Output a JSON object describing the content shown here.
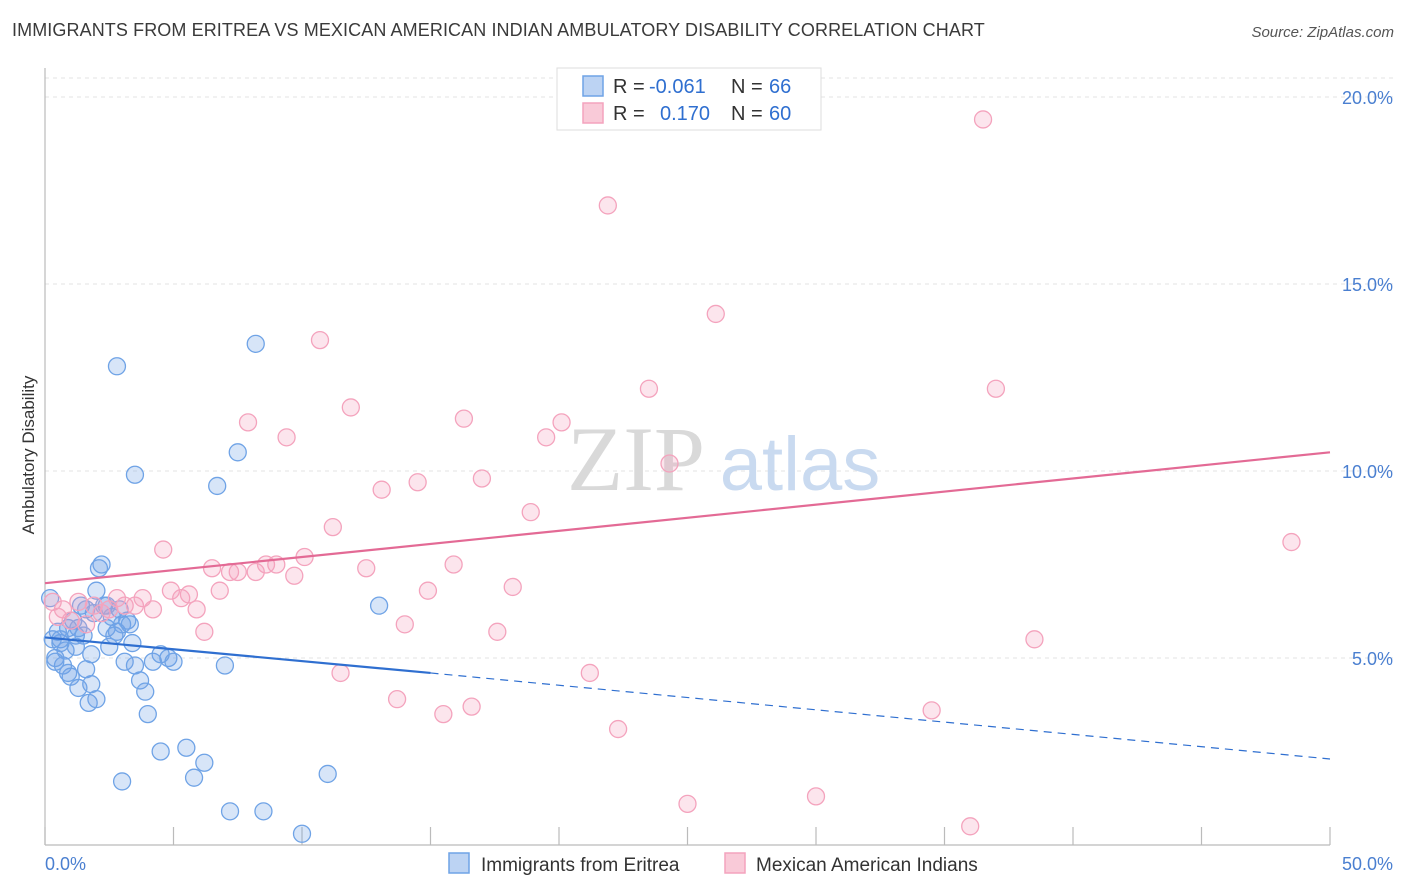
{
  "title": "IMMIGRANTS FROM ERITREA VS MEXICAN AMERICAN INDIAN AMBULATORY DISABILITY CORRELATION CHART",
  "source": "Source: ZipAtlas.com",
  "watermark": {
    "zip": "ZIP",
    "atlas": "atlas"
  },
  "chart_data": {
    "type": "scatter",
    "xlabel": "",
    "ylabel": "Ambulatory Disability",
    "xlim": [
      0,
      50
    ],
    "ylim": [
      0,
      20.5
    ],
    "x_tick_labels": {
      "min": "0.0%",
      "max": "50.0%"
    },
    "y_ticks": [
      {
        "value": 5,
        "label": "5.0%"
      },
      {
        "value": 10,
        "label": "10.0%"
      },
      {
        "value": 15,
        "label": "15.0%"
      },
      {
        "value": 20,
        "label": "20.0%"
      }
    ],
    "grid": true,
    "legend_position": "top-center",
    "series": [
      {
        "name": "Immigrants from Eritrea",
        "color": "#6fa3e6",
        "line_color": "#2f6fd0",
        "R": "-0.061",
        "N": "66",
        "trend": {
          "x0": 0,
          "y0": 5.55,
          "x1": 15,
          "y1": 4.6,
          "dash_x1": 50,
          "dash_y1": 2.3
        },
        "points": [
          [
            0.2,
            6.6
          ],
          [
            0.3,
            5.5
          ],
          [
            0.4,
            5.0
          ],
          [
            0.5,
            5.7
          ],
          [
            0.6,
            5.4
          ],
          [
            0.7,
            4.8
          ],
          [
            0.8,
            5.2
          ],
          [
            0.9,
            5.8
          ],
          [
            1.0,
            4.5
          ],
          [
            1.1,
            6.0
          ],
          [
            1.2,
            5.6
          ],
          [
            1.3,
            4.2
          ],
          [
            1.4,
            6.4
          ],
          [
            1.5,
            5.6
          ],
          [
            1.6,
            4.7
          ],
          [
            1.7,
            3.8
          ],
          [
            1.8,
            5.1
          ],
          [
            1.9,
            6.2
          ],
          [
            2.0,
            6.8
          ],
          [
            2.1,
            7.4
          ],
          [
            2.2,
            7.5
          ],
          [
            2.3,
            6.4
          ],
          [
            2.4,
            5.8
          ],
          [
            2.5,
            5.3
          ],
          [
            2.6,
            6.1
          ],
          [
            2.7,
            5.6
          ],
          [
            2.8,
            5.7
          ],
          [
            2.9,
            6.3
          ],
          [
            3.0,
            5.9
          ],
          [
            3.1,
            4.9
          ],
          [
            3.2,
            6.0
          ],
          [
            3.4,
            5.4
          ],
          [
            3.5,
            4.8
          ],
          [
            3.7,
            4.4
          ],
          [
            3.9,
            4.1
          ],
          [
            4.0,
            3.5
          ],
          [
            4.2,
            4.9
          ],
          [
            4.5,
            5.1
          ],
          [
            4.8,
            5.0
          ],
          [
            5.0,
            4.9
          ],
          [
            5.5,
            2.6
          ],
          [
            5.8,
            1.8
          ],
          [
            6.2,
            2.2
          ],
          [
            6.7,
            9.6
          ],
          [
            7.2,
            0.9
          ],
          [
            7.5,
            10.5
          ],
          [
            7.0,
            4.8
          ],
          [
            8.2,
            13.4
          ],
          [
            8.5,
            0.9
          ],
          [
            10.0,
            0.3
          ],
          [
            11.0,
            1.9
          ],
          [
            1.2,
            5.3
          ],
          [
            0.6,
            5.5
          ],
          [
            0.9,
            4.6
          ],
          [
            2.0,
            3.9
          ],
          [
            1.3,
            5.8
          ],
          [
            2.4,
            6.4
          ],
          [
            3.3,
            5.9
          ],
          [
            1.6,
            6.3
          ],
          [
            2.8,
            12.8
          ],
          [
            3.5,
            9.9
          ],
          [
            3.0,
            1.7
          ],
          [
            13.0,
            6.4
          ],
          [
            4.5,
            2.5
          ],
          [
            1.8,
            4.3
          ],
          [
            0.4,
            4.9
          ]
        ]
      },
      {
        "name": "Mexican American Indians",
        "color": "#f4a3bd",
        "line_color": "#e36a95",
        "R": "0.170",
        "N": "60",
        "trend": {
          "x0": 0,
          "y0": 7.0,
          "x1": 50,
          "y1": 10.5
        },
        "points": [
          [
            0.3,
            6.5
          ],
          [
            0.5,
            6.1
          ],
          [
            0.7,
            6.3
          ],
          [
            1.0,
            6.0
          ],
          [
            1.3,
            6.5
          ],
          [
            1.6,
            5.9
          ],
          [
            1.9,
            6.4
          ],
          [
            2.2,
            6.2
          ],
          [
            2.5,
            6.3
          ],
          [
            2.8,
            6.6
          ],
          [
            3.1,
            6.4
          ],
          [
            3.5,
            6.4
          ],
          [
            3.8,
            6.6
          ],
          [
            4.2,
            6.3
          ],
          [
            4.6,
            7.9
          ],
          [
            4.9,
            6.8
          ],
          [
            5.3,
            6.6
          ],
          [
            5.6,
            6.7
          ],
          [
            5.9,
            6.3
          ],
          [
            6.2,
            5.7
          ],
          [
            6.5,
            7.4
          ],
          [
            6.8,
            6.8
          ],
          [
            7.2,
            7.3
          ],
          [
            7.5,
            7.3
          ],
          [
            7.9,
            11.3
          ],
          [
            8.2,
            7.3
          ],
          [
            8.6,
            7.5
          ],
          [
            9.0,
            7.5
          ],
          [
            9.4,
            10.9
          ],
          [
            9.7,
            7.2
          ],
          [
            10.1,
            7.7
          ],
          [
            10.7,
            13.5
          ],
          [
            11.2,
            8.5
          ],
          [
            11.5,
            4.6
          ],
          [
            11.9,
            11.7
          ],
          [
            12.5,
            7.4
          ],
          [
            13.1,
            9.5
          ],
          [
            13.7,
            3.9
          ],
          [
            14.0,
            5.9
          ],
          [
            14.5,
            9.7
          ],
          [
            14.9,
            6.8
          ],
          [
            15.5,
            3.5
          ],
          [
            15.9,
            7.5
          ],
          [
            16.3,
            11.4
          ],
          [
            16.6,
            3.7
          ],
          [
            17.0,
            9.8
          ],
          [
            17.6,
            5.7
          ],
          [
            18.2,
            6.9
          ],
          [
            18.9,
            8.9
          ],
          [
            19.5,
            10.9
          ],
          [
            20.1,
            11.3
          ],
          [
            21.2,
            4.6
          ],
          [
            21.9,
            17.1
          ],
          [
            22.3,
            3.1
          ],
          [
            23.5,
            12.2
          ],
          [
            24.3,
            10.2
          ],
          [
            25.0,
            1.1
          ],
          [
            26.1,
            14.2
          ],
          [
            30.0,
            1.3
          ],
          [
            36.0,
            0.5
          ]
        ],
        "extra_points": [
          [
            37.0,
            12.2
          ],
          [
            34.5,
            3.6
          ],
          [
            38.5,
            5.5
          ],
          [
            48.5,
            8.1
          ],
          [
            36.5,
            19.4
          ]
        ]
      }
    ]
  }
}
